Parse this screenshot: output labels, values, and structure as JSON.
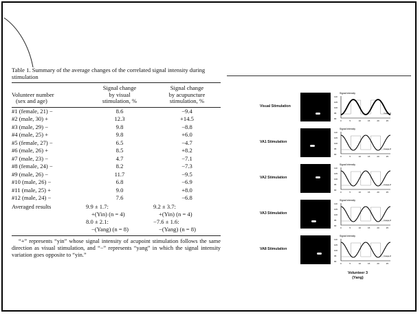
{
  "table": {
    "caption": "Table 1.   Summary of the average changes of the correlated signal intensity during stimulation",
    "headers": {
      "col0": [
        "Volunteer number",
        "(sex and age)"
      ],
      "col1": [
        "Signal change",
        "by visual",
        "stimulation, %"
      ],
      "col2": [
        "Signal change",
        "by acupuncture",
        "stimulation, %"
      ]
    },
    "rows": [
      {
        "volunteer": "#1 (female, 21) −",
        "visual": "8.6",
        "acupuncture": "−9.4"
      },
      {
        "volunteer": "#2 (male, 30) +",
        "visual": "12.3",
        "acupuncture": "+14.5"
      },
      {
        "volunteer": "#3 (male, 29) −",
        "visual": "9.8",
        "acupuncture": "−8.8"
      },
      {
        "volunteer": "#4 (male, 25) +",
        "visual": "9.8",
        "acupuncture": "+6.0"
      },
      {
        "volunteer": "#5 (female, 27) −",
        "visual": "6.5",
        "acupuncture": "−4.7"
      },
      {
        "volunteer": "#6 (male, 26) +",
        "visual": "8.5",
        "acupuncture": "+8.2"
      },
      {
        "volunteer": "#7 (male, 23) −",
        "visual": "4.7",
        "acupuncture": "−7.1"
      },
      {
        "volunteer": "#8 (female, 24) −",
        "visual": "8.2",
        "acupuncture": "−7.3"
      },
      {
        "volunteer": "#9 (male, 26) −",
        "visual": "11.7",
        "acupuncture": "−9.5"
      },
      {
        "volunteer": "#10 (male, 26) −",
        "visual": "6.8",
        "acupuncture": "−6.9"
      },
      {
        "volunteer": "#11 (male, 25) +",
        "visual": "9.0",
        "acupuncture": "+8.0"
      },
      {
        "volunteer": "#12 (male, 24) −",
        "visual": "7.6",
        "acupuncture": "−6.8"
      }
    ],
    "averaged": {
      "label": "Averaged results",
      "visual": [
        "9.9 ± 1.7:",
        "+(Yin) (n = 4)",
        "8.0 ± 2.1:",
        "−(Yang) (n = 8)"
      ],
      "acupuncture": [
        "9.2 ± 3.7:",
        "+(Yin) (n = 4)",
        "−7.6 ± 1.6:",
        "−(Yang) (n = 8)"
      ]
    },
    "footnote": "“+” represents “yin” whose signal intensity of acupoint stimulation follows the same direction as visual stimulation, and “−” represents “yang” in which the signal intensity variation goes opposite to “yin.”"
  },
  "figure": {
    "panels": [
      {
        "label": "Visual Stimulation",
        "axis_title": "Signal Intensity",
        "x_label": "Image #",
        "curve": "visual"
      },
      {
        "label": "VA1 Stimulation",
        "axis_title": "Signal Intensity",
        "x_label": "Image #",
        "curve": "acu"
      },
      {
        "label": "VA2 Stimulation",
        "axis_title": "Signal Intensity",
        "x_label": "Image #",
        "curve": "acu"
      },
      {
        "label": "VA3 Stimulation",
        "axis_title": "Signal Intensity",
        "x_label": "Image #",
        "curve": "acu"
      },
      {
        "label": "VA8 Stimulation",
        "axis_title": "Signal Intensity",
        "x_label": "Image #",
        "curve": "acu"
      }
    ],
    "y_ticks": [
      "110",
      "105",
      "100",
      "95",
      "90"
    ],
    "x_ticks": [
      "0",
      "5",
      "10",
      "15",
      "20",
      "25"
    ],
    "volunteer_label": [
      "Volunteer 3",
      "(Yang)"
    ]
  }
}
